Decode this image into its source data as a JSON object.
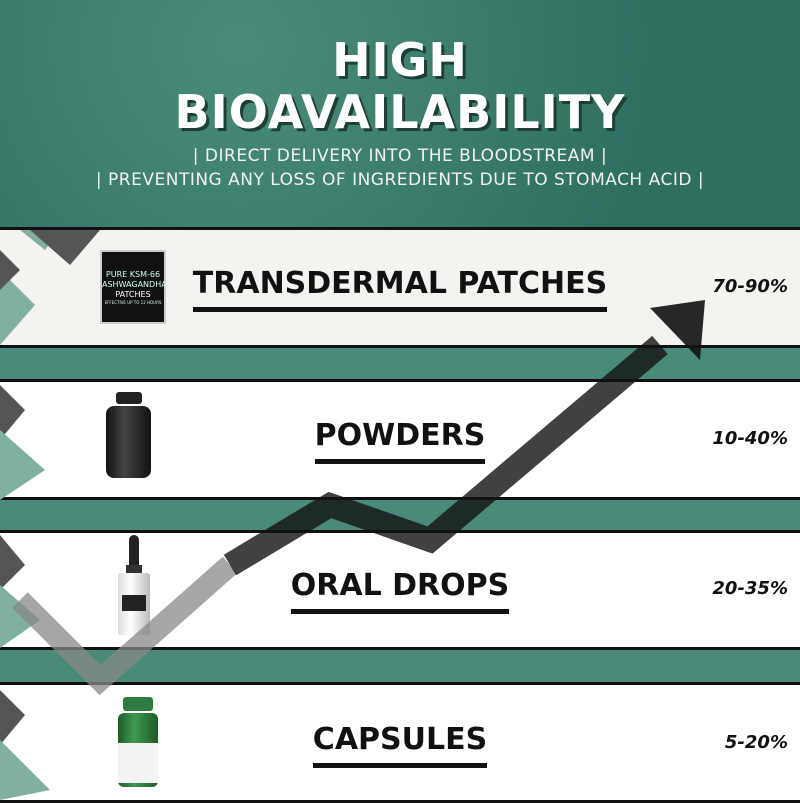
{
  "header": {
    "title_line1": "HIGH",
    "title_line2": "BIOAVAILABILITY",
    "subtitle_line1": "| DIRECT DELIVERY INTO THE BLOODSTREAM |",
    "subtitle_line2": "| PREVENTING ANY LOSS OF INGREDIENTS DUE TO STOMACH ACID |"
  },
  "rows": [
    {
      "label": "TRANSDERMAL PATCHES",
      "value": "70-90%",
      "product": "patch-box"
    },
    {
      "label": "POWDERS",
      "value": "10-40%",
      "product": "powder-jar"
    },
    {
      "label": "ORAL DROPS",
      "value": "20-35%",
      "product": "dropper-bottle"
    },
    {
      "label": "CAPSULES",
      "value": "5-20%",
      "product": "capsule-bottle"
    }
  ],
  "patch_box": {
    "line1": "PURE KSM-66",
    "line2": "ASHWAGANDHA",
    "line3": "PATCHES",
    "line4": "EFFECTIVE UP TO 12 HOURS"
  },
  "colors": {
    "teal": "#3b7f70",
    "band": "#4a8a7a",
    "row": "#f4f3ef",
    "text": "#111111"
  }
}
